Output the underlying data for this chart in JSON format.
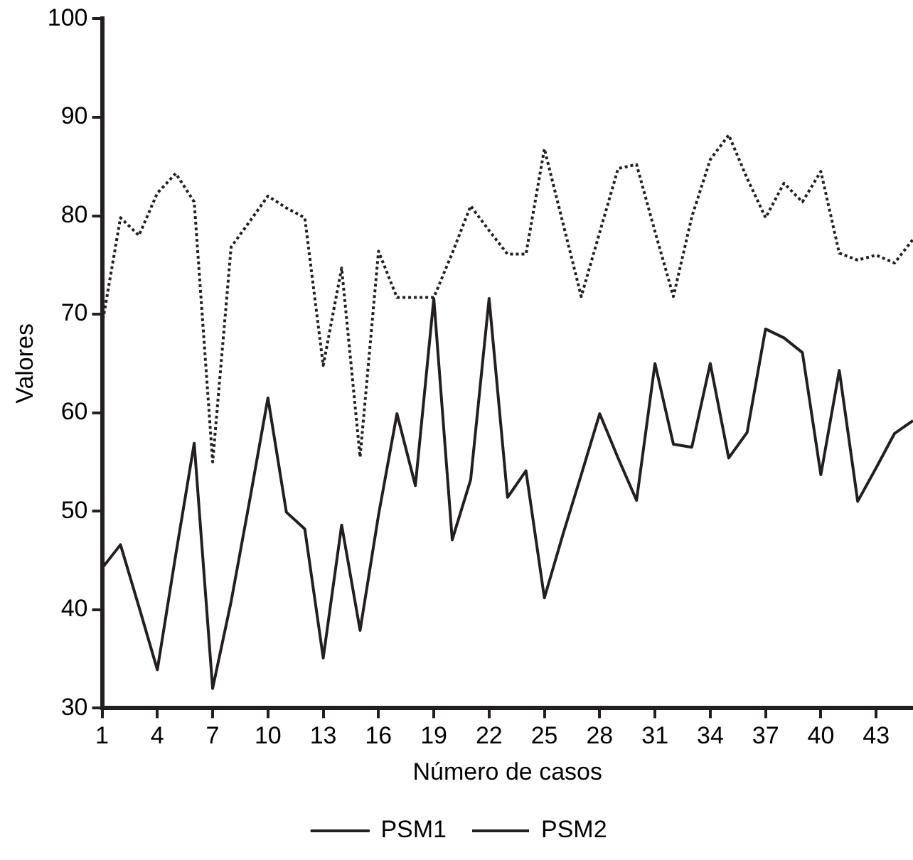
{
  "chart_data": {
    "type": "line",
    "xlabel": "Número de casos",
    "ylabel": "Valores",
    "x": [
      1,
      2,
      3,
      4,
      5,
      6,
      7,
      8,
      9,
      10,
      11,
      12,
      13,
      14,
      15,
      16,
      17,
      18,
      19,
      20,
      21,
      22,
      23,
      24,
      25,
      26,
      27,
      28,
      29,
      30,
      31,
      32,
      33,
      34,
      35,
      36,
      37,
      38,
      39,
      40,
      41,
      42,
      43,
      44,
      45
    ],
    "xlim": [
      1,
      45
    ],
    "xticks": [
      1,
      4,
      7,
      10,
      13,
      16,
      19,
      22,
      25,
      28,
      31,
      34,
      37,
      40,
      43
    ],
    "ylim": [
      30,
      100
    ],
    "yticks": [
      30,
      40,
      50,
      60,
      70,
      80,
      90,
      100
    ],
    "grid": false,
    "legend": "bottom",
    "series": [
      {
        "name": "PSM1",
        "color": "#231f20",
        "line_style": "solid",
        "values": [
          44.2,
          46.6,
          40.3,
          33.9,
          45.6,
          56.9,
          32.0,
          40.8,
          51.0,
          61.5,
          49.9,
          48.2,
          35.1,
          48.6,
          37.9,
          49.6,
          59.9,
          52.6,
          71.6,
          47.1,
          53.2,
          71.6,
          51.4,
          54.1,
          41.2,
          47.6,
          53.7,
          59.9,
          55.4,
          51.1,
          65.0,
          56.8,
          56.5,
          65.0,
          55.4,
          58.0,
          68.5,
          67.6,
          66.1,
          53.7,
          64.3,
          51.0,
          54.4,
          57.9,
          59.2
        ]
      },
      {
        "name": "PSM2",
        "color": "#231f20",
        "line_style": "dotted",
        "values": [
          68.9,
          79.8,
          78.0,
          82.3,
          84.3,
          81.4,
          55.0,
          76.8,
          79.4,
          82.0,
          80.8,
          79.8,
          64.8,
          74.7,
          55.5,
          76.4,
          71.7,
          71.7,
          71.7,
          76.2,
          81.0,
          78.5,
          76.1,
          76.1,
          86.8,
          79.3,
          71.8,
          78.3,
          84.8,
          85.2,
          78.4,
          71.8,
          79.9,
          85.7,
          88.2,
          83.8,
          79.8,
          83.3,
          81.4,
          84.5,
          76.2,
          75.5,
          76.0,
          75.2,
          77.6
        ]
      }
    ]
  }
}
